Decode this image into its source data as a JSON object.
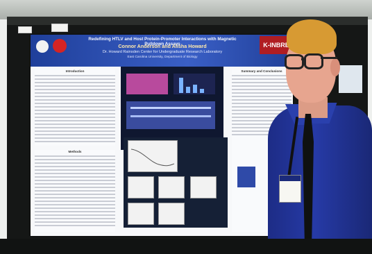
{
  "poster": {
    "title": "Redefining HTLV and Host Protein-Promoter Interactions with Magnetic Pulldown Assays",
    "authors": "Connor Anderson and Alisha Howard",
    "lab": "Dr. Howard Rainsden Center for Undergraduate Research Laboratory",
    "department": "East Carolina University, Department of Biology",
    "inbre_badge": "K-INBRE",
    "sections": {
      "introduction": "Introduction",
      "methods": "Methods",
      "summary": "Summary and Conclusions"
    }
  },
  "scene": {
    "colors": {
      "poster_banner": "#2a4db3",
      "shirt": "#253aa5",
      "hair": "#d79a33",
      "board": "#151716"
    }
  }
}
